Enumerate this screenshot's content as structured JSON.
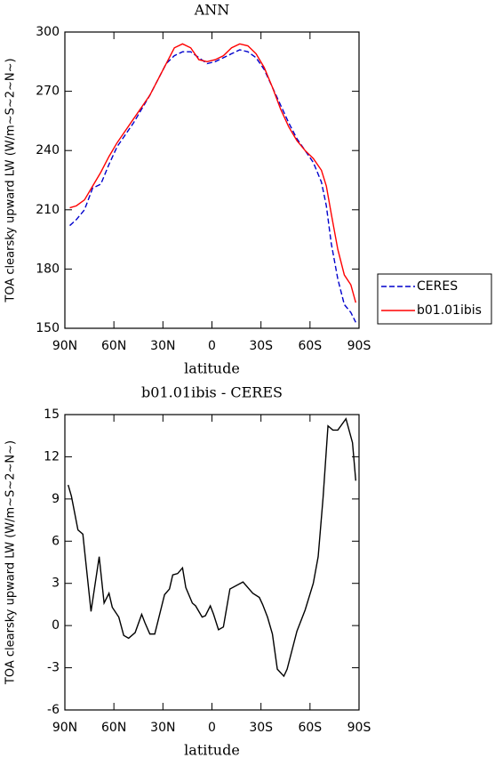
{
  "chart_data": [
    {
      "type": "line",
      "title": "ANN",
      "xlabel": "latitude",
      "ylabel": "TOA clearsky upward LW (W/m~S~2~N~)",
      "x": [
        87,
        83,
        78,
        73,
        68,
        63,
        58,
        53,
        48,
        43,
        38,
        33,
        28,
        23,
        18,
        13,
        8,
        3,
        -2,
        -7,
        -12,
        -17,
        -22,
        -27,
        -32,
        -37,
        -42,
        -47,
        -52,
        -57,
        -62,
        -67,
        -70,
        -73,
        -77,
        -81,
        -85,
        -88
      ],
      "series": [
        {
          "name": "CERES",
          "color": "#0000cc",
          "style": "dashed",
          "values": [
            202,
            205,
            210,
            221,
            223,
            233,
            242,
            248,
            254,
            261,
            268,
            276,
            284,
            288,
            290,
            290,
            287,
            284,
            285,
            287,
            289,
            291,
            290,
            287,
            281,
            272,
            263,
            254,
            246,
            240,
            234,
            224,
            212,
            193,
            175,
            162,
            158,
            153
          ]
        },
        {
          "name": "b01.01ibis",
          "color": "#ff0000",
          "style": "solid",
          "values": [
            211,
            212,
            215,
            222,
            229,
            237,
            244,
            250,
            256,
            262,
            268,
            276,
            284,
            292,
            294,
            292,
            286,
            285,
            286,
            288,
            292,
            294,
            293,
            289,
            282,
            272,
            261,
            252,
            245,
            240,
            236,
            230,
            222,
            208,
            190,
            177,
            172,
            163
          ]
        }
      ],
      "xlim": [
        90,
        -90
      ],
      "xticks": [
        {
          "value": 90,
          "label": "90N"
        },
        {
          "value": 60,
          "label": "60N"
        },
        {
          "value": 30,
          "label": "30N"
        },
        0,
        {
          "value": -30,
          "label": "30S"
        },
        {
          "value": -60,
          "label": "60S"
        },
        {
          "value": -90,
          "label": "90S"
        }
      ],
      "ylim": [
        150,
        300
      ],
      "yticks": [
        150,
        180,
        210,
        240,
        270,
        300
      ],
      "legend": "right"
    },
    {
      "type": "line",
      "title": "b01.01ibis - CERES",
      "xlabel": "latitude",
      "ylabel": "TOA clearsky upward LW (W/m~S~2~N~)",
      "x": [
        88,
        86,
        82,
        79,
        74,
        69,
        66,
        63,
        61,
        57,
        54,
        51,
        47,
        43,
        41,
        38,
        35,
        29,
        26,
        24,
        21,
        18,
        16,
        12,
        10,
        6,
        4,
        1,
        -1,
        -4,
        -7,
        -11,
        -19,
        -25,
        -29,
        -31,
        -34,
        -37,
        -40,
        -44,
        -46,
        -52,
        -57,
        -62,
        -65,
        -68,
        -71,
        -74,
        -77,
        -82,
        -86,
        -88
      ],
      "values": [
        10,
        9.2,
        6.8,
        6.5,
        1.0,
        4.9,
        1.6,
        2.3,
        1.3,
        0.6,
        -0.7,
        -0.9,
        -0.5,
        0.8,
        0.2,
        -0.6,
        -0.6,
        2.2,
        2.6,
        3.6,
        3.7,
        4.1,
        2.7,
        1.6,
        1.4,
        0.6,
        0.7,
        1.4,
        0.8,
        -0.3,
        -0.1,
        2.6,
        3.1,
        2.3,
        2.0,
        1.5,
        0.6,
        -0.6,
        -3.1,
        -3.6,
        -3.1,
        -0.4,
        1.1,
        3.0,
        4.9,
        9.1,
        14.2,
        13.9,
        13.9,
        14.7,
        13.0,
        10.3
      ],
      "color": "#000000",
      "xlim": [
        90,
        -90
      ],
      "xticks": [
        {
          "value": 90,
          "label": "90N"
        },
        {
          "value": 60,
          "label": "60N"
        },
        {
          "value": 30,
          "label": "30N"
        },
        0,
        {
          "value": -30,
          "label": "30S"
        },
        {
          "value": -60,
          "label": "60S"
        },
        {
          "value": -90,
          "label": "90S"
        }
      ],
      "ylim": [
        -6,
        15
      ],
      "yticks": [
        -6,
        -3,
        0,
        3,
        6,
        9,
        12,
        15
      ]
    }
  ]
}
